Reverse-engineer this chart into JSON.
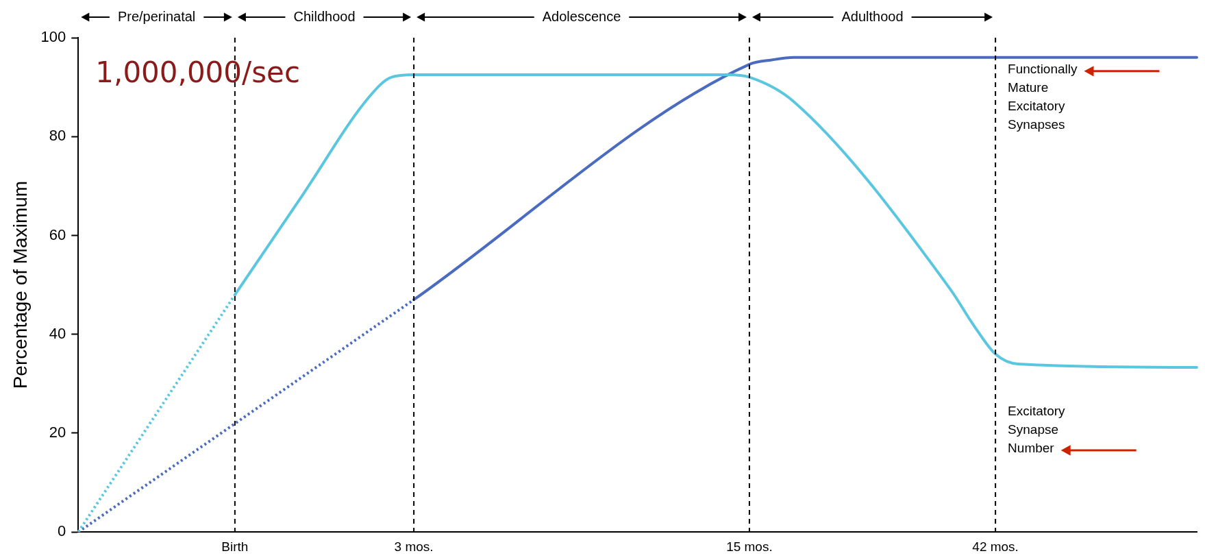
{
  "chart_data": {
    "type": "line",
    "ylabel": "Percentage of Maximum",
    "ylim": [
      0,
      100
    ],
    "categories": [
      null,
      null,
      null,
      null,
      null,
      null,
      null,
      "Birth",
      null,
      null,
      null,
      null,
      null,
      null,
      null,
      "3 mos.",
      null,
      null,
      null,
      null,
      null,
      null,
      null,
      null,
      null,
      null,
      null,
      null,
      null,
      null,
      "15 mos.",
      null,
      null,
      null,
      null,
      null,
      null,
      null,
      null,
      null,
      null,
      "42 mos.",
      null,
      null,
      null,
      null,
      null,
      null,
      null,
      null,
      null
    ],
    "yticks": [
      0,
      20,
      40,
      60,
      80,
      100
    ],
    "grid": false,
    "legend": false,
    "marker": "none",
    "ref_lines": [
      {
        "axis": "x",
        "value": "Birth",
        "color": "#000000",
        "line_style": "dashed"
      },
      {
        "axis": "x",
        "value": "3 mos.",
        "color": "#000000",
        "line_style": "dashed"
      },
      {
        "axis": "x",
        "value": "15 mos.",
        "color": "#000000",
        "line_style": "dashed"
      },
      {
        "axis": "x",
        "value": "42 mos.",
        "color": "#000000",
        "line_style": "dashed"
      }
    ],
    "annotations": [
      "1,000,000/sec",
      "Pre/perinatal",
      "Childhood",
      "Adolescence",
      "Adulthood"
    ],
    "series": [
      {
        "color": "#5bc6e0",
        "line_style": "dotted",
        "values": [
          0,
          null,
          null,
          null,
          null,
          null,
          null,
          48,
          null,
          null,
          null,
          null,
          null,
          null,
          null,
          null,
          null,
          null,
          null,
          null,
          null,
          null,
          null,
          null,
          null,
          null,
          null,
          null,
          null,
          null,
          null,
          null,
          null,
          null,
          null,
          null,
          null,
          null,
          null,
          null,
          null,
          null,
          null,
          null,
          null,
          null,
          null,
          null,
          null,
          null,
          null
        ]
      },
      {
        "name": "Excitatory Synapse Number",
        "color": "#5bc6e0",
        "line_style": "solid",
        "values": [
          null,
          null,
          null,
          null,
          null,
          null,
          null,
          48,
          null,
          null,
          68,
          null,
          null,
          88,
          92,
          92.5,
          null,
          null,
          null,
          null,
          null,
          null,
          null,
          null,
          null,
          null,
          null,
          null,
          null,
          92.5,
          92,
          null,
          87,
          null,
          null,
          null,
          null,
          null,
          null,
          49,
          42,
          36,
          34,
          null,
          null,
          null,
          null,
          null,
          null,
          null,
          33.3
        ]
      },
      {
        "color": "#4a6bbf",
        "line_style": "dotted",
        "values": [
          0,
          null,
          null,
          null,
          null,
          null,
          null,
          null,
          null,
          null,
          null,
          null,
          null,
          null,
          null,
          47,
          null,
          null,
          null,
          null,
          null,
          null,
          null,
          null,
          null,
          null,
          null,
          null,
          null,
          null,
          null,
          null,
          null,
          null,
          null,
          null,
          null,
          null,
          null,
          null,
          null,
          null,
          null,
          null,
          null,
          null,
          null,
          null,
          null,
          null,
          null
        ]
      },
      {
        "name": "Functionally Mature Excitatory Synapses",
        "color": "#4a6bbf",
        "line_style": "solid",
        "values": [
          null,
          null,
          null,
          null,
          null,
          null,
          null,
          null,
          null,
          null,
          null,
          null,
          null,
          null,
          null,
          47,
          null,
          null,
          null,
          null,
          null,
          null,
          null,
          null,
          null,
          null,
          null,
          null,
          null,
          null,
          94.6,
          95.5,
          96,
          null,
          null,
          null,
          null,
          null,
          null,
          null,
          null,
          null,
          null,
          null,
          null,
          null,
          null,
          null,
          null,
          null,
          96
        ]
      }
    ]
  }
}
